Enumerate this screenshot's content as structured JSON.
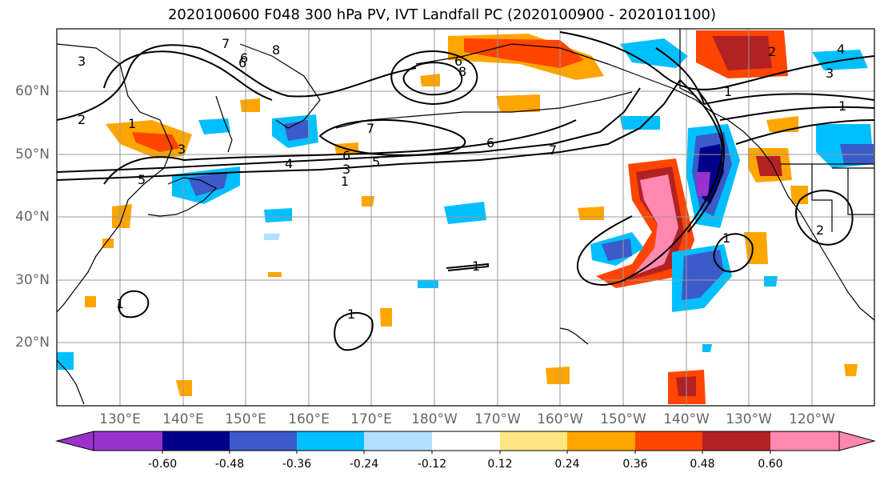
{
  "title": "2020100600 F048 300 hPa PV, IVT Landfall PC (2020100900 - 2020101100)",
  "map": {
    "lat_labels": [
      "60°N",
      "50°N",
      "40°N",
      "30°N",
      "20°N"
    ],
    "lon_labels": [
      "130°E",
      "140°E",
      "150°E",
      "160°E",
      "170°E",
      "180°W",
      "170°W",
      "160°W",
      "150°W",
      "140°W",
      "130°W",
      "120°W"
    ],
    "contour_labels": [
      "3",
      "8",
      "6",
      "7",
      "6",
      "3",
      "2",
      "1",
      "3",
      "5",
      "4",
      "6",
      "5",
      "1",
      "7",
      "6",
      "7",
      "6",
      "8",
      "2",
      "4",
      "3",
      "1",
      "1",
      "1",
      "1",
      "2",
      "1",
      "1"
    ]
  },
  "colorbar": {
    "tick_labels": [
      "-0.60",
      "-0.48",
      "-0.36",
      "-0.24",
      "-0.12",
      "0.12",
      "0.24",
      "0.36",
      "0.48",
      "0.60"
    ],
    "colors": [
      "#9932CC",
      "#00008B",
      "#3A5BC9",
      "#00BFFF",
      "#B0E2FF",
      "#FFFFFF",
      "#FFE680",
      "#FFA500",
      "#FF4500",
      "#B22222",
      "#FF88B0"
    ]
  }
}
